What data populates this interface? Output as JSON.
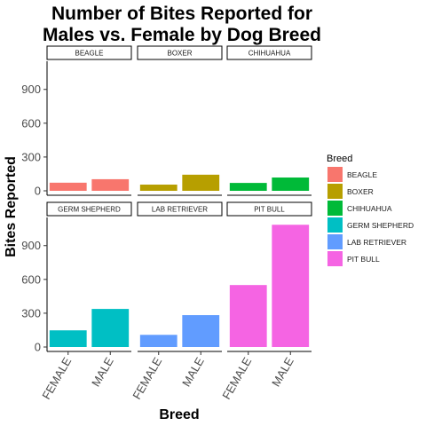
{
  "chart_data": {
    "type": "bar",
    "title_lines": [
      "Number of Bites Reported for",
      "Males vs. Female by Dog Breed"
    ],
    "xlabel": "Breed",
    "ylabel": "Bites Reported",
    "categories": [
      "FEMALE",
      "MALE"
    ],
    "ylim": [
      0,
      1150
    ],
    "yticks": [
      0,
      300,
      600,
      900
    ],
    "facet_layout": "2x3 grid",
    "grid": false,
    "legend_placement": "right",
    "legend_title": "Breed",
    "series": [
      {
        "name": "BEAGLE",
        "color": "#F8766D",
        "values": [
          72,
          103
        ]
      },
      {
        "name": "BOXER",
        "color": "#B79F00",
        "values": [
          55,
          143
        ]
      },
      {
        "name": "CHIHUAHUA",
        "color": "#00BA38",
        "values": [
          70,
          118
        ]
      },
      {
        "name": "GERM SHEPHERD",
        "color": "#00BFC4",
        "values": [
          148,
          338
        ]
      },
      {
        "name": "LAB RETRIEVER",
        "color": "#619CFF",
        "values": [
          108,
          283
        ]
      },
      {
        "name": "PIT BULL",
        "color": "#F564E3",
        "values": [
          550,
          1085
        ]
      }
    ]
  }
}
